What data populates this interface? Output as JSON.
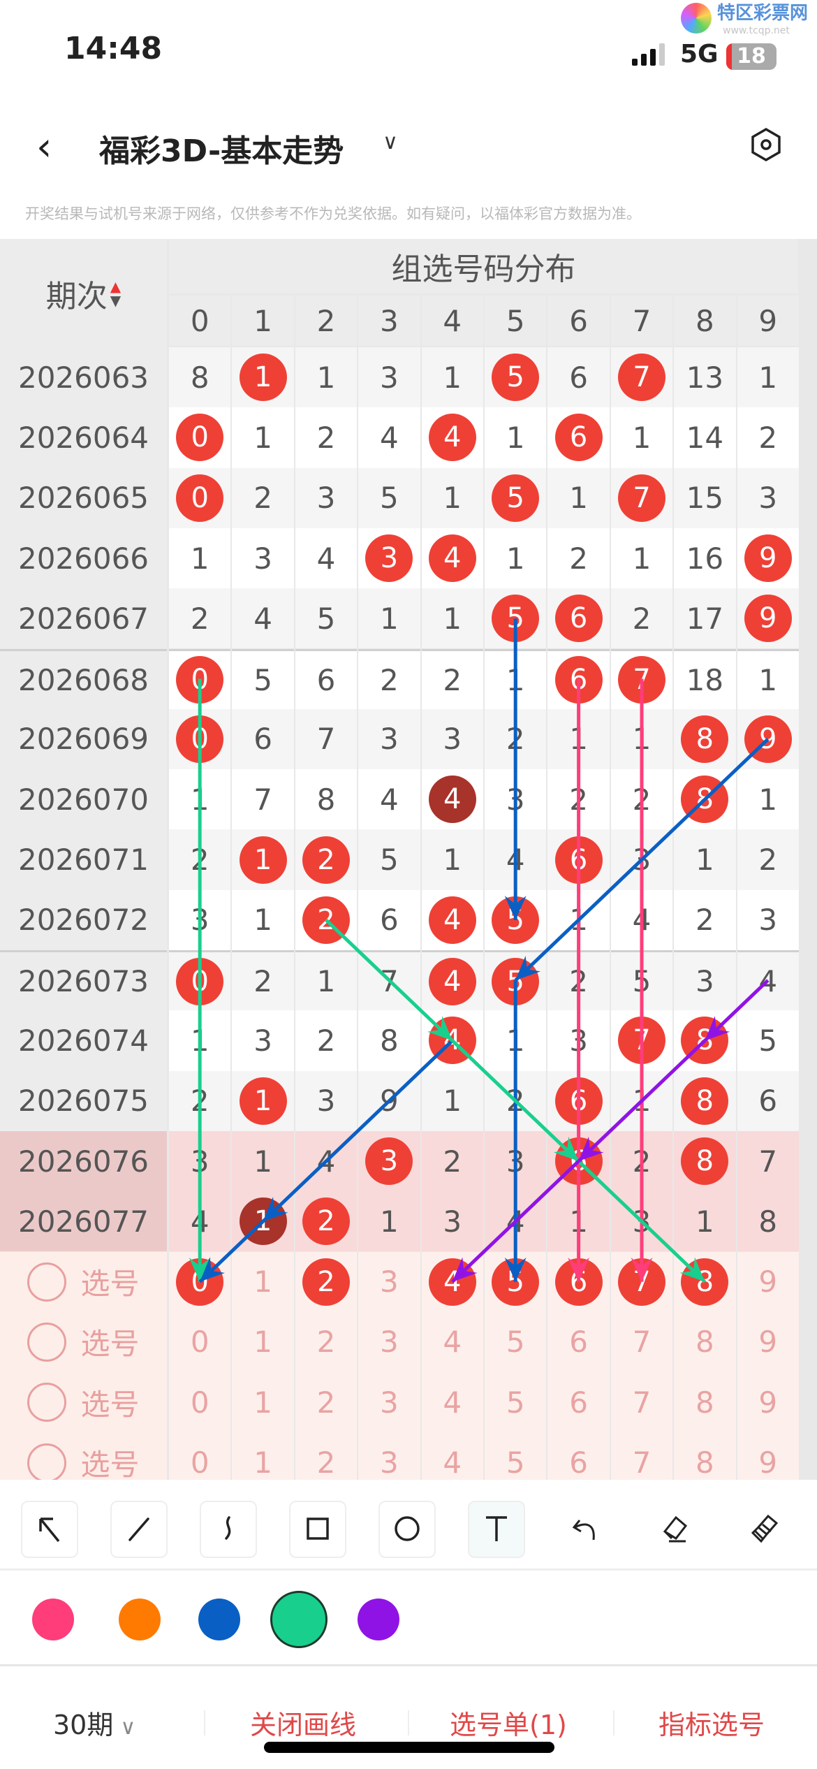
{
  "status_bar": {
    "time": "14:48",
    "network": "5G",
    "battery": "18"
  },
  "watermark": {
    "logo_text": "特区彩票网",
    "url": "www.tcqp.net"
  },
  "nav": {
    "back_icon": "chevron-left-icon",
    "title": "福彩3D-基本走势",
    "dropdown_icon": "chevron-down-icon",
    "settings_icon": "hexagon-settings-icon"
  },
  "disclaimer": "开奖结果与试机号来源于网络，仅供参考不作为兑奖依据。如有疑问，以福体彩官方数据为准。",
  "table": {
    "period_header": "期次",
    "sort_icon": "sort-up-down-icon",
    "group_header": "组选号码分布",
    "digits": [
      "0",
      "1",
      "2",
      "3",
      "4",
      "5",
      "6",
      "7",
      "8",
      "9"
    ],
    "rows": [
      {
        "period": "2026063",
        "cells": [
          "8",
          "1",
          "1",
          "3",
          "1",
          "5",
          "6",
          "7",
          "13",
          "1"
        ],
        "hits": [
          1,
          5,
          7
        ],
        "double": []
      },
      {
        "period": "2026064",
        "cells": [
          "0",
          "1",
          "2",
          "4",
          "4",
          "1",
          "6",
          "1",
          "14",
          "2"
        ],
        "hits": [
          0,
          4,
          6
        ],
        "double": []
      },
      {
        "period": "2026065",
        "cells": [
          "0",
          "2",
          "3",
          "5",
          "1",
          "5",
          "1",
          "7",
          "15",
          "3"
        ],
        "hits": [
          0,
          5,
          7
        ],
        "double": []
      },
      {
        "period": "2026066",
        "cells": [
          "1",
          "3",
          "4",
          "3",
          "4",
          "1",
          "2",
          "1",
          "16",
          "9"
        ],
        "hits": [
          3,
          4,
          9
        ],
        "double": []
      },
      {
        "period": "2026067",
        "cells": [
          "2",
          "4",
          "5",
          "1",
          "1",
          "5",
          "6",
          "2",
          "17",
          "9"
        ],
        "hits": [
          5,
          6,
          9
        ],
        "double": []
      },
      {
        "period": "2026068",
        "cells": [
          "0",
          "5",
          "6",
          "2",
          "2",
          "1",
          "6",
          "7",
          "18",
          "1"
        ],
        "hits": [
          0,
          6,
          7
        ],
        "double": []
      },
      {
        "period": "2026069",
        "cells": [
          "0",
          "6",
          "7",
          "3",
          "3",
          "2",
          "1",
          "1",
          "8",
          "9"
        ],
        "hits": [
          0,
          8,
          9
        ],
        "double": []
      },
      {
        "period": "2026070",
        "cells": [
          "1",
          "7",
          "8",
          "4",
          "4",
          "3",
          "2",
          "2",
          "8",
          "1"
        ],
        "hits": [
          4,
          8
        ],
        "double": [
          4
        ]
      },
      {
        "period": "2026071",
        "cells": [
          "2",
          "1",
          "2",
          "5",
          "1",
          "4",
          "6",
          "3",
          "1",
          "2"
        ],
        "hits": [
          1,
          2,
          6
        ],
        "double": []
      },
      {
        "period": "2026072",
        "cells": [
          "3",
          "1",
          "2",
          "6",
          "4",
          "5",
          "1",
          "4",
          "2",
          "3"
        ],
        "hits": [
          2,
          4,
          5
        ],
        "double": []
      },
      {
        "period": "2026073",
        "cells": [
          "0",
          "2",
          "1",
          "7",
          "4",
          "5",
          "2",
          "5",
          "3",
          "4"
        ],
        "hits": [
          0,
          4,
          5
        ],
        "double": []
      },
      {
        "period": "2026074",
        "cells": [
          "1",
          "3",
          "2",
          "8",
          "4",
          "1",
          "3",
          "7",
          "8",
          "5"
        ],
        "hits": [
          4,
          7,
          8
        ],
        "double": []
      },
      {
        "period": "2026075",
        "cells": [
          "2",
          "1",
          "3",
          "9",
          "1",
          "2",
          "6",
          "1",
          "8",
          "6"
        ],
        "hits": [
          1,
          6,
          8
        ],
        "double": []
      },
      {
        "period": "2026076",
        "cells": [
          "3",
          "1",
          "4",
          "3",
          "2",
          "3",
          "6",
          "2",
          "8",
          "7"
        ],
        "hits": [
          3,
          6,
          8
        ],
        "double": [],
        "highlight": true
      },
      {
        "period": "2026077",
        "cells": [
          "4",
          "1",
          "2",
          "1",
          "3",
          "4",
          "1",
          "3",
          "1",
          "8"
        ],
        "hits": [
          1,
          2
        ],
        "double": [
          1
        ],
        "highlight": true
      }
    ],
    "pick_rows": [
      {
        "label": "选号",
        "selected": [
          0,
          2,
          4,
          5,
          6,
          7,
          8
        ]
      },
      {
        "label": "选号",
        "selected": []
      },
      {
        "label": "选号",
        "selected": []
      },
      {
        "label": "选号",
        "selected": []
      }
    ]
  },
  "drawn_arrows": [
    {
      "from": [
        "2026068",
        0
      ],
      "to": [
        "pick1",
        0
      ],
      "color": "#19cf8e"
    },
    {
      "from": [
        "2026067",
        5
      ],
      "to": [
        "2026072",
        5
      ],
      "color": "#0a5fc4"
    },
    {
      "from": [
        "2026068",
        6
      ],
      "to": [
        "pick1",
        6
      ],
      "color": "#ff3d7b"
    },
    {
      "from": [
        "2026068",
        7
      ],
      "to": [
        "pick1",
        7
      ],
      "color": "#ff3d7b"
    },
    {
      "from": [
        "2026069",
        9
      ],
      "to": [
        "2026073",
        5
      ],
      "color": "#0a5fc4"
    },
    {
      "from": [
        "2026073",
        5
      ],
      "to": [
        "pick1",
        5
      ],
      "color": "#0a5fc4"
    },
    {
      "from": [
        "2026074",
        4
      ],
      "to": [
        "2026077",
        1
      ],
      "color": "#0a5fc4"
    },
    {
      "from": [
        "2026077",
        1
      ],
      "to": [
        "pick1",
        0
      ],
      "color": "#0a5fc4"
    },
    {
      "from": [
        "2026072",
        2
      ],
      "to": [
        "2026074",
        4
      ],
      "color": "#19cf8e"
    },
    {
      "from": [
        "2026074",
        4
      ],
      "to": [
        "2026076",
        6
      ],
      "color": "#19cf8e"
    },
    {
      "from": [
        "2026076",
        6
      ],
      "to": [
        "pick1",
        8
      ],
      "color": "#19cf8e"
    },
    {
      "from": [
        "2026073",
        9
      ],
      "to": [
        "2026074",
        8
      ],
      "color": "#9013e6"
    },
    {
      "from": [
        "2026074",
        8
      ],
      "to": [
        "2026076",
        6
      ],
      "color": "#9013e6"
    },
    {
      "from": [
        "2026076",
        6
      ],
      "to": [
        "pick1",
        4
      ],
      "color": "#9013e6"
    }
  ],
  "toolbar": {
    "tools": [
      {
        "name": "arrow-tool",
        "icon": "arrow-up-left-icon"
      },
      {
        "name": "line-tool",
        "icon": "line-icon"
      },
      {
        "name": "curve-tool",
        "icon": "curve-icon"
      },
      {
        "name": "rectangle-tool",
        "icon": "rectangle-icon"
      },
      {
        "name": "circle-tool",
        "icon": "circle-icon"
      },
      {
        "name": "text-tool",
        "icon": "text-icon",
        "active": true
      },
      {
        "name": "undo-button",
        "icon": "undo-icon"
      },
      {
        "name": "eraser-button",
        "icon": "eraser-icon"
      },
      {
        "name": "clear-button",
        "icon": "broom-icon"
      }
    ]
  },
  "colors": {
    "options": [
      "#ff3d7b",
      "#ff7a00",
      "#0a5fc4",
      "#19cf8e",
      "#9013e6"
    ],
    "selected": "#19cf8e"
  },
  "bottom_bar": {
    "periods": "30期",
    "close_drawing": "关闭画线",
    "pick_list": "选号单(1)",
    "indicator_pick": "指标选号",
    "accent": "#e04848"
  }
}
